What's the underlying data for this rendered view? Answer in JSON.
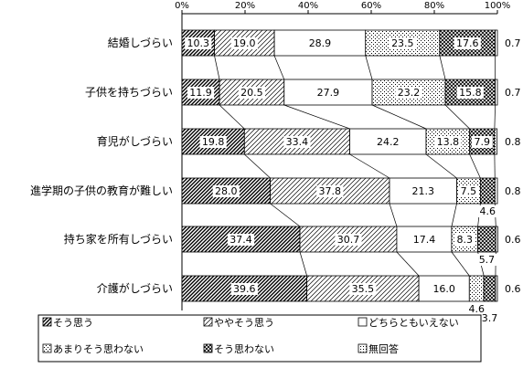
{
  "chart_data": {
    "type": "bar",
    "stacked": true,
    "orientation": "horizontal",
    "x_ticks": [
      "0%",
      "20%",
      "40%",
      "60%",
      "80%",
      "100%"
    ],
    "xlim": [
      0,
      100
    ],
    "grid": false,
    "legend_position": "bottom",
    "categories": [
      "結婚しづらい",
      "子供を持ちづらい",
      "育児がしづらい",
      "進学期の子供の教育が難しい",
      "持ち家を所有しづらい",
      "介護がしづらい"
    ],
    "series": [
      {
        "name": "そう思う",
        "values": [
          10.3,
          11.9,
          19.8,
          28.0,
          37.4,
          39.6
        ]
      },
      {
        "name": "ややそう思う",
        "values": [
          19.0,
          20.5,
          33.4,
          37.8,
          30.7,
          35.5
        ]
      },
      {
        "name": "どちらともいえない",
        "values": [
          28.9,
          27.9,
          24.2,
          21.3,
          17.4,
          16.0
        ]
      },
      {
        "name": "あまりそう思わない",
        "values": [
          23.5,
          23.2,
          13.8,
          7.5,
          8.3,
          4.6
        ]
      },
      {
        "name": "そう思わない",
        "values": [
          17.6,
          15.8,
          7.9,
          4.6,
          5.7,
          3.7
        ]
      },
      {
        "name": "無回答",
        "values": [
          0.7,
          0.7,
          0.8,
          0.8,
          0.6,
          0.6
        ]
      }
    ]
  }
}
